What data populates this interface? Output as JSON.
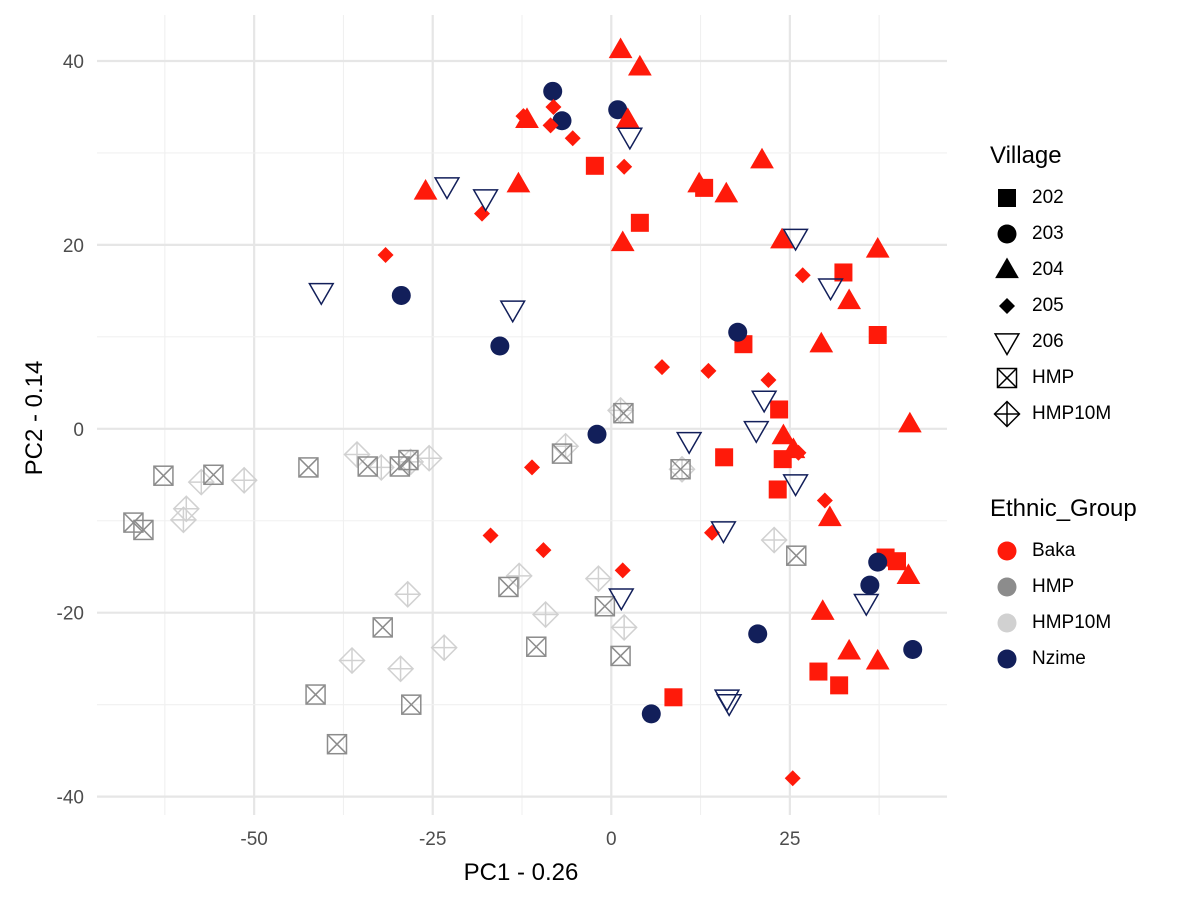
{
  "chart_data": {
    "type": "scatter",
    "xlabel": "PC1 - 0.26",
    "ylabel": "PC2 - 0.14",
    "xlim": [
      -72,
      47
    ],
    "ylim": [
      -42,
      45
    ],
    "xticks": [
      -50,
      -25,
      0,
      25
    ],
    "yticks": [
      -40,
      -20,
      0,
      20,
      40
    ],
    "grid": true,
    "legend_position": "right",
    "shape_legend": {
      "title": "Village",
      "items": [
        {
          "label": "202",
          "shape": "square"
        },
        {
          "label": "203",
          "shape": "circle"
        },
        {
          "label": "204",
          "shape": "triangle"
        },
        {
          "label": "205",
          "shape": "diamond"
        },
        {
          "label": "206",
          "shape": "triangle-down-open"
        },
        {
          "label": "HMP",
          "shape": "square-cross"
        },
        {
          "label": "HMP10M",
          "shape": "diamond-plus"
        }
      ]
    },
    "color_legend": {
      "title": "Ethnic_Group",
      "items": [
        {
          "label": "Baka",
          "color": "#ff1a0a"
        },
        {
          "label": "HMP",
          "color": "#8c8c8c"
        },
        {
          "label": "HMP10M",
          "color": "#d1d1d1"
        },
        {
          "label": "Nzime",
          "color": "#121f5a"
        }
      ]
    },
    "series": [
      {
        "village": "202",
        "group": "Baka",
        "points": [
          [
            -2.3,
            28.6
          ],
          [
            4,
            22.4
          ],
          [
            13,
            26.2
          ],
          [
            18.5,
            9.2
          ],
          [
            23.5,
            2.1
          ],
          [
            15.8,
            -3.1
          ],
          [
            24,
            -3.3
          ],
          [
            23.3,
            -6.6
          ],
          [
            32.5,
            17
          ],
          [
            37.3,
            10.2
          ],
          [
            38.4,
            -14
          ],
          [
            40,
            -14.4
          ],
          [
            29,
            -26.4
          ],
          [
            31.9,
            -27.9
          ],
          [
            8.7,
            -29.2
          ]
        ]
      },
      {
        "village": "203",
        "group": "Nzime",
        "points": [
          [
            -8.2,
            36.7
          ],
          [
            -6.9,
            33.5
          ],
          [
            0.9,
            34.7
          ],
          [
            -29.4,
            14.5
          ],
          [
            -15.6,
            9
          ],
          [
            17.7,
            10.5
          ],
          [
            -2,
            -0.6
          ],
          [
            37.3,
            -14.5
          ],
          [
            36.2,
            -17
          ],
          [
            20.5,
            -22.3
          ],
          [
            42.2,
            -24
          ],
          [
            5.6,
            -31
          ]
        ]
      },
      {
        "village": "204",
        "group": "Baka",
        "points": [
          [
            1.3,
            41.2
          ],
          [
            4,
            39.3
          ],
          [
            -11.8,
            33.6
          ],
          [
            2.3,
            33.6
          ],
          [
            -26,
            25.8
          ],
          [
            -13,
            26.6
          ],
          [
            12.3,
            26.6
          ],
          [
            16.1,
            25.5
          ],
          [
            21.1,
            29.2
          ],
          [
            1.6,
            20.2
          ],
          [
            23.9,
            20.5
          ],
          [
            37.3,
            19.5
          ],
          [
            33.3,
            13.9
          ],
          [
            29.4,
            9.2
          ],
          [
            41.8,
            0.5
          ],
          [
            24.1,
            -0.8
          ],
          [
            25.5,
            -2.3
          ],
          [
            30.6,
            -9.7
          ],
          [
            41.6,
            -16
          ],
          [
            29.6,
            -19.9
          ],
          [
            33.3,
            -24.2
          ],
          [
            37.3,
            -25.3
          ]
        ]
      },
      {
        "village": "205",
        "group": "Baka",
        "points": [
          [
            -12.3,
            34
          ],
          [
            -8.1,
            35
          ],
          [
            -8.5,
            33
          ],
          [
            -5.4,
            31.6
          ],
          [
            1.8,
            28.5
          ],
          [
            -18.1,
            23.4
          ],
          [
            -31.6,
            18.9
          ],
          [
            26.8,
            16.7
          ],
          [
            7.1,
            6.7
          ],
          [
            13.6,
            6.3
          ],
          [
            22,
            5.3
          ],
          [
            26.2,
            -2.6
          ],
          [
            -11.1,
            -4.2
          ],
          [
            29.9,
            -7.8
          ],
          [
            14.1,
            -11.3
          ],
          [
            -16.9,
            -11.6
          ],
          [
            -9.5,
            -13.2
          ],
          [
            1.6,
            -15.4
          ],
          [
            25.4,
            -38
          ]
        ]
      },
      {
        "village": "206",
        "group": "Nzime",
        "points": [
          [
            -23,
            26.4
          ],
          [
            -17.6,
            25.1
          ],
          [
            2.6,
            31.8
          ],
          [
            -40.6,
            14.9
          ],
          [
            -13.8,
            13
          ],
          [
            25.8,
            20.8
          ],
          [
            30.7,
            15.4
          ],
          [
            21.4,
            3.2
          ],
          [
            10.9,
            -1.3
          ],
          [
            20.3,
            -0.1
          ],
          [
            15.7,
            -11
          ],
          [
            25.8,
            -5.9
          ],
          [
            35.7,
            -18.9
          ],
          [
            1.4,
            -18.3
          ],
          [
            16.2,
            -29.3
          ],
          [
            16.5,
            -29.8
          ]
        ]
      },
      {
        "village": "HMP",
        "group": "HMP",
        "points": [
          [
            -66.9,
            -10.2
          ],
          [
            -65.5,
            -11
          ],
          [
            -62.7,
            -5.1
          ],
          [
            -55.7,
            -5
          ],
          [
            -42.4,
            -4.2
          ],
          [
            -34.1,
            -4.1
          ],
          [
            -29.6,
            -4.1
          ],
          [
            -28.4,
            -3.4
          ],
          [
            -6.9,
            -2.7
          ],
          [
            1.7,
            1.7
          ],
          [
            9.7,
            -4.4
          ],
          [
            25.9,
            -13.8
          ],
          [
            -14.4,
            -17.2
          ],
          [
            -0.9,
            -19.3
          ],
          [
            -32,
            -21.6
          ],
          [
            -10.5,
            -23.7
          ],
          [
            1.3,
            -24.7
          ],
          [
            -41.4,
            -28.9
          ],
          [
            -28,
            -30
          ],
          [
            -38.4,
            -34.3
          ]
        ]
      },
      {
        "village": "HMP10M",
        "group": "HMP10M",
        "points": [
          [
            -51.4,
            -5.6
          ],
          [
            -57.4,
            -5.8
          ],
          [
            -59.5,
            -8.7
          ],
          [
            -59.9,
            -9.9
          ],
          [
            -35.6,
            -2.8
          ],
          [
            -32.2,
            -4.2
          ],
          [
            -28.1,
            -3.6
          ],
          [
            -25.5,
            -3.2
          ],
          [
            -6.4,
            -1.9
          ],
          [
            1.3,
            2
          ],
          [
            9.9,
            -4.4
          ],
          [
            22.8,
            -12.1
          ],
          [
            -12.9,
            -16
          ],
          [
            -1.8,
            -16.3
          ],
          [
            -28.5,
            -18
          ],
          [
            -9.2,
            -20.2
          ],
          [
            1.8,
            -21.6
          ],
          [
            -36.3,
            -25.2
          ],
          [
            -29.5,
            -26.1
          ],
          [
            -23.4,
            -23.8
          ]
        ]
      }
    ]
  }
}
